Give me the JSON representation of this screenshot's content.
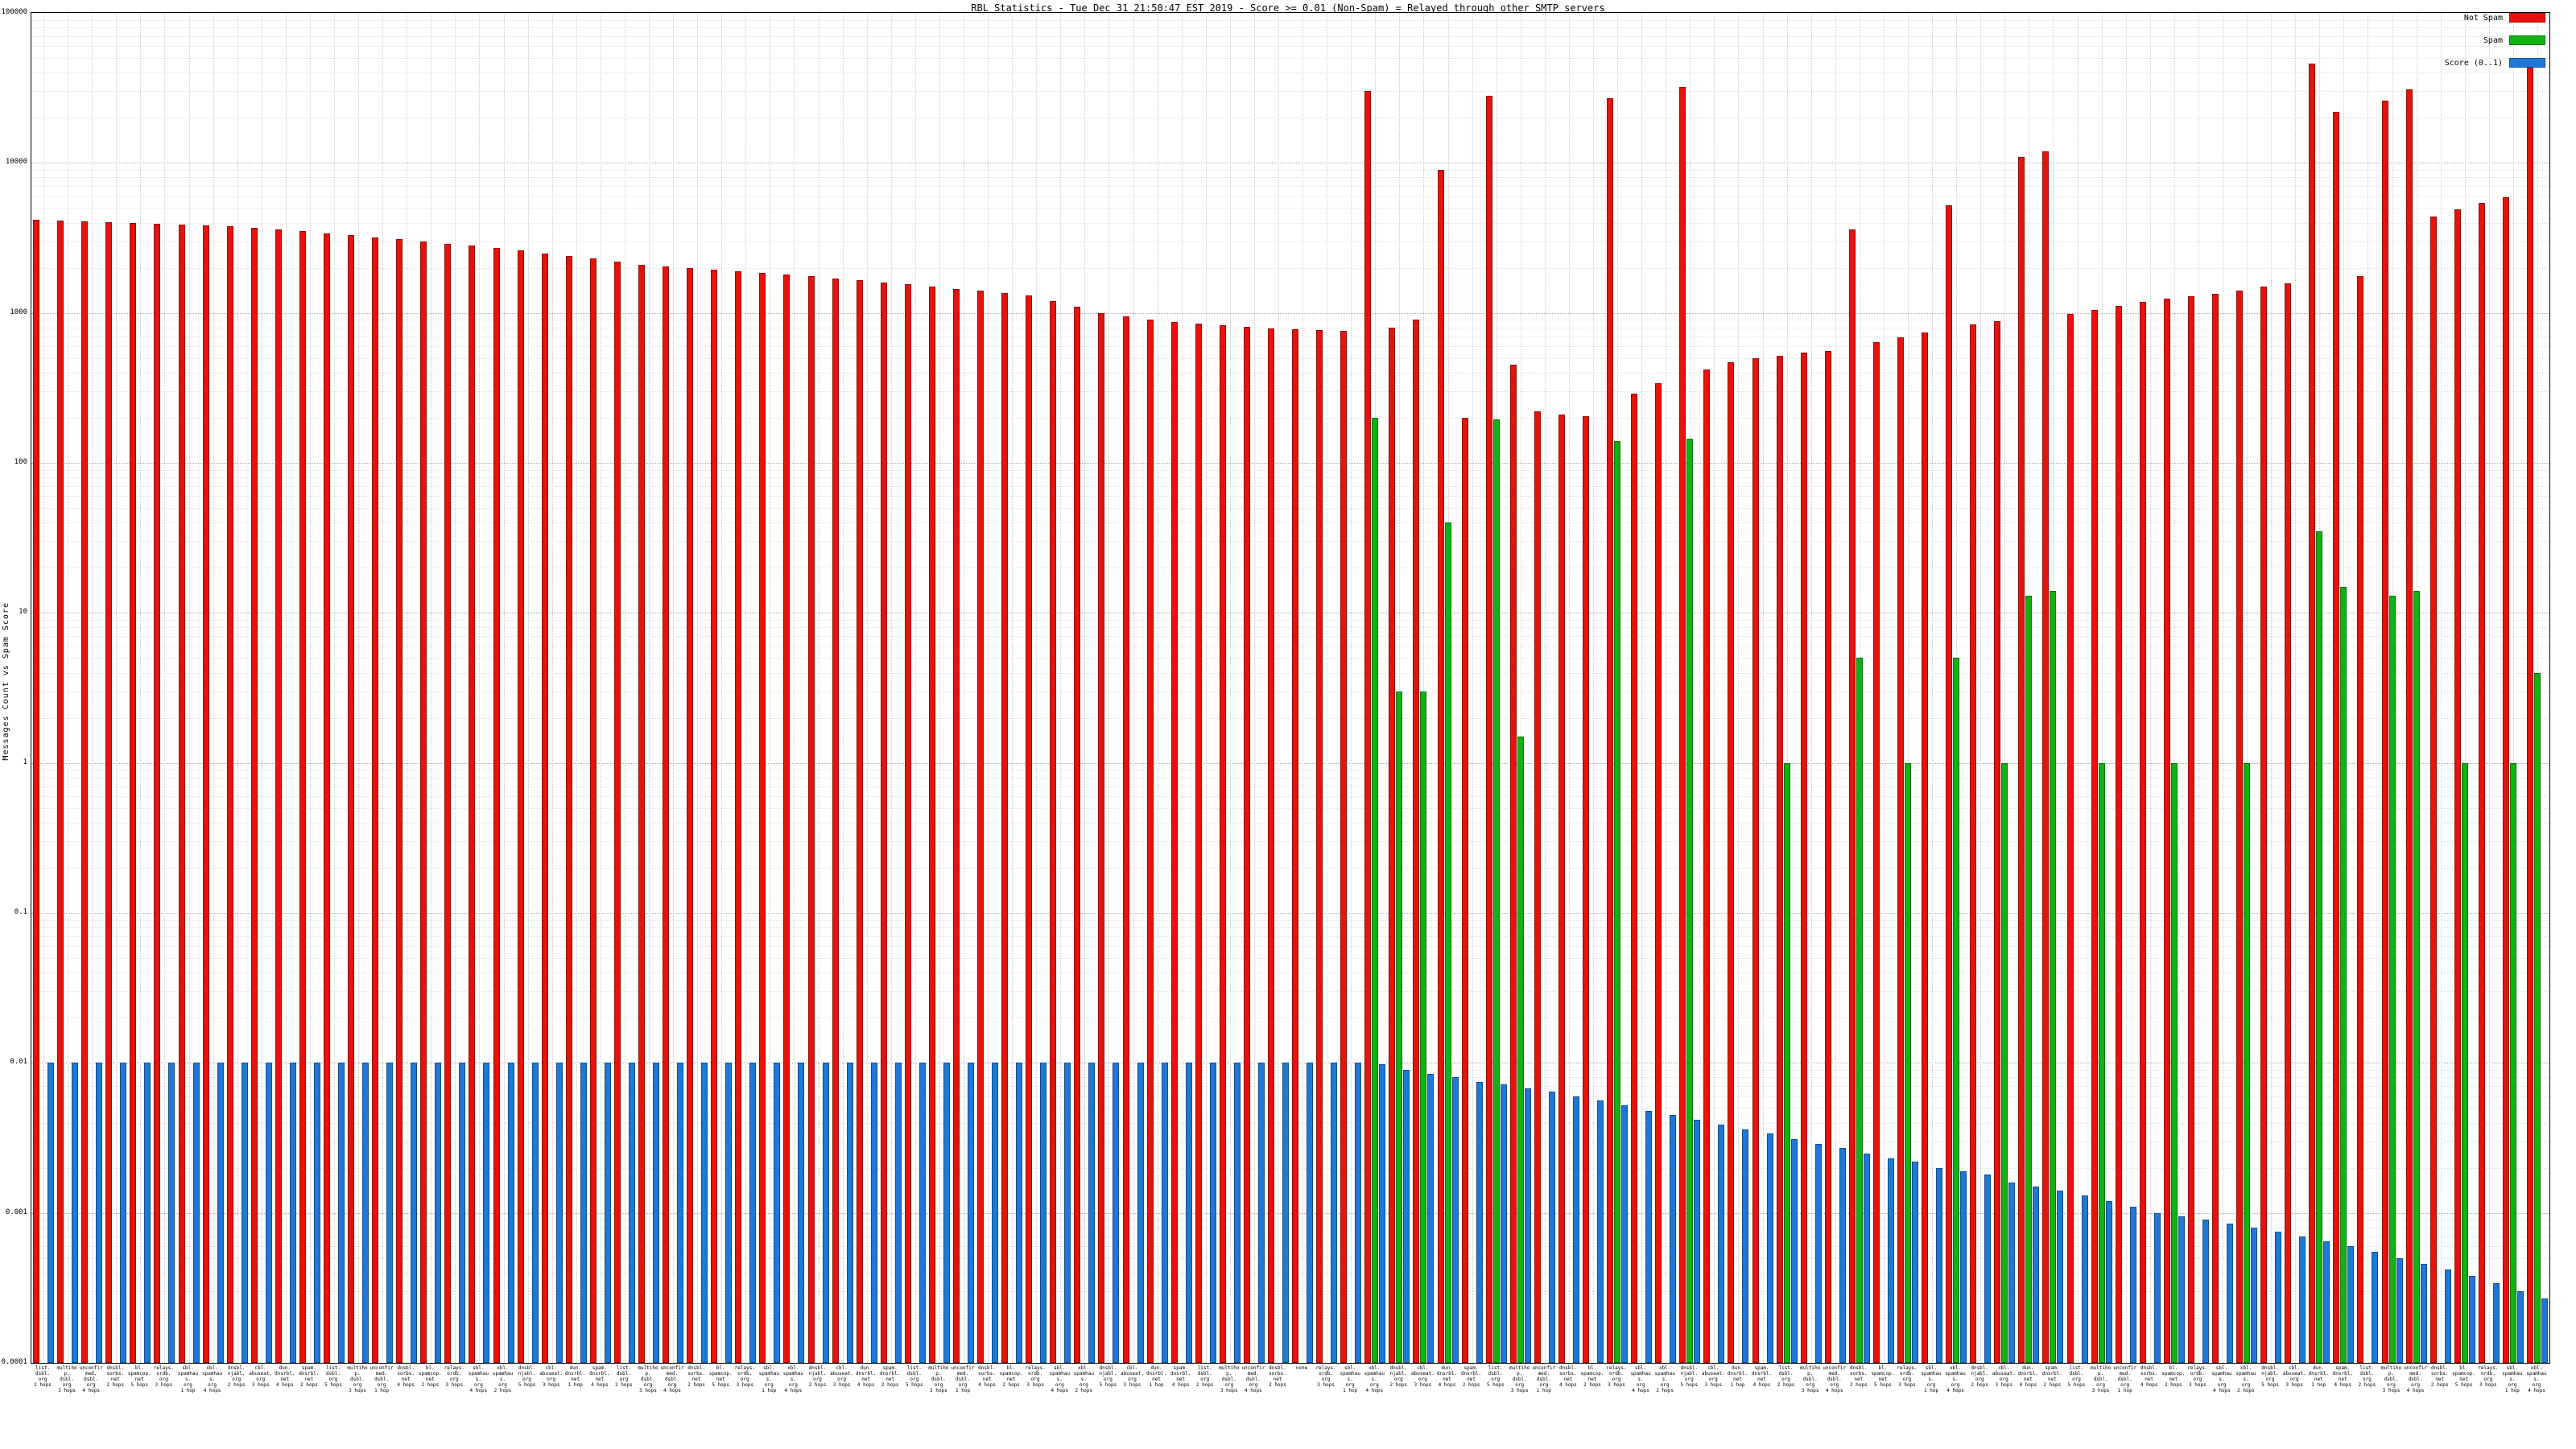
{
  "chart_data": {
    "type": "bar",
    "title": "RBL Statistics - Tue Dec 31 21:50:47 EST 2019 - Score >= 0.01 (Non-Spam) = Relayed through other SMTP servers",
    "ylabel": "Messages Count vs Spam Score",
    "xlabel": "",
    "y_scale": "log",
    "ylim": [
      0.0001,
      100000
    ],
    "y_ticks": [
      "100000",
      "10000",
      "1000",
      "100",
      "10",
      "1",
      "0.1",
      "0.01",
      "0.001",
      "0.0001"
    ],
    "grid": true,
    "legend_position": "top-right",
    "categories": [
      "list. dsbl. org 2~hops",
      "multihop. dsbl. org 3~hops",
      "unconfirmed. dsbl. org 4~hops",
      "dnsbl. sorbs. net 2~hops",
      "bl. spamcop. net 5~hops",
      "relays. ordb. org 3~hops",
      "sbl. spamhaus. org 1~hop",
      "xbl. spamhaus. org 4~hops",
      "dnsbl. njabl. org 2~hops",
      "cbl. abuseat. org 3~hops",
      "dun. dnsrbl. net 4~hops",
      "spam. dnsrbl. net 2~hops",
      "list. dsbl. org 5~hops",
      "multihop. dsbl. org 3~hops",
      "unconfirmed. dsbl. org 1~hop",
      "dnsbl. sorbs. net 4~hops",
      "bl. spamcop. net 2~hops",
      "relays. ordb. org 3~hops",
      "sbl. spamhaus. org 4~hops",
      "xbl. spamhaus. org 2~hops",
      "dnsbl. njabl. org 5~hops",
      "cbl. abuseat. org 3~hops",
      "dun. dnsrbl. net 1~hop",
      "spam. dnsrbl. net 4~hops",
      "list. dsbl. org 2~hops",
      "multihop. dsbl. org 3~hops",
      "unconfirmed. dsbl. org 4~hops",
      "dnsbl. sorbs. net 2~hops",
      "bl. spamcop. net 5~hops",
      "relays. ordb. org 3~hops",
      "sbl. spamhaus. org 1~hop",
      "xbl. spamhaus. org 4~hops",
      "dnsbl. njabl. org 2~hops",
      "cbl. abuseat. org 3~hops",
      "dun. dnsrbl. net 4~hops",
      "spam. dnsrbl. net 2~hops",
      "list. dsbl. org 5~hops",
      "multihop. dsbl. org 3~hops",
      "unconfirmed. dsbl. org 1~hop",
      "dnsbl. sorbs. net 4~hops",
      "bl. spamcop. net 2~hops",
      "relays. ordb. org 3~hops",
      "sbl. spamhaus. org 4~hops",
      "xbl. spamhaus. org 2~hops",
      "dnsbl. njabl. org 5~hops",
      "cbl. abuseat. org 3~hops",
      "dun. dnsrbl. net 1~hop",
      "spam. dnsrbl. net 4~hops",
      "list. dsbl. org 2~hops",
      "multihop. dsbl. org 3~hops",
      "unconfirmed. dsbl. org 4~hops",
      "dnsbl. sorbs. net 2~hops",
      "none",
      "relays. ordb. org 3~hops",
      "sbl. spamhaus. org 1~hop",
      "xbl. spamhaus. org 4~hops",
      "dnsbl. njabl. org 2~hops",
      "cbl. abuseat. org 3~hops",
      "dun. dnsrbl. net 4~hops",
      "spam. dnsrbl. net 2~hops",
      "list. dsbl. org 5~hops",
      "multihop. dsbl. org 3~hops",
      "unconfirmed. dsbl. org 1~hop",
      "dnsbl. sorbs. net 4~hops",
      "bl. spamcop. net 2~hops",
      "relays. ordb. org 3~hops",
      "sbl. spamhaus. org 4~hops",
      "xbl. spamhaus. org 2~hops",
      "dnsbl. njabl. org 5~hops",
      "cbl. abuseat. org 3~hops",
      "dun. dnsrbl. net 1~hop",
      "spam. dnsrbl. net 4~hops",
      "list. dsbl. org 2~hops",
      "multihop. dsbl. org 3~hops",
      "unconfirmed. dsbl. org 4~hops",
      "dnsbl. sorbs. net 2~hops",
      "bl. spamcop. net 5~hops",
      "relays. ordb. org 3~hops",
      "sbl. spamhaus. org 1~hop",
      "xbl. spamhaus. org 4~hops",
      "dnsbl. njabl. org 2~hops",
      "cbl. abuseat. org 3~hops",
      "dun. dnsrbl. net 4~hops",
      "spam. dnsrbl. net 2~hops",
      "list. dsbl. org 5~hops",
      "multihop. dsbl. org 3~hops",
      "unconfirmed. dsbl. org 1~hop",
      "dnsbl. sorbs. net 4~hops",
      "bl. spamcop. net 2~hops",
      "relays. ordb. org 3~hops",
      "sbl. spamhaus. org 4~hops",
      "xbl. spamhaus. org 2~hops",
      "dnsbl. njabl. org 5~hops",
      "cbl. abuseat. org 3~hops",
      "dun. dnsrbl. net 1~hop",
      "spam. dnsrbl. net 4~hops",
      "list. dsbl. org 2~hops",
      "multihop. dsbl. org 3~hops",
      "unconfirmed. dsbl. org 4~hops",
      "dnsbl. sorbs. net 2~hops",
      "bl. spamcop. net 5~hops",
      "relays. ordb. org 3~hops",
      "sbl. spamhaus. org 1~hop",
      "xbl. spamhaus. org 4~hops"
    ],
    "series": [
      {
        "name": "Not Spam",
        "color": "#e8120c",
        "values": [
          4200,
          4150,
          4100,
          4050,
          4000,
          3950,
          3900,
          3850,
          3800,
          3700,
          3600,
          3500,
          3400,
          3300,
          3200,
          3100,
          3000,
          2900,
          2800,
          2700,
          2600,
          2500,
          2400,
          2300,
          2200,
          2100,
          2050,
          2000,
          1950,
          1900,
          1850,
          1800,
          1750,
          1700,
          1650,
          1600,
          1550,
          1500,
          1450,
          1400,
          1350,
          1300,
          1200,
          1100,
          1000,
          950,
          900,
          870,
          850,
          830,
          810,
          790,
          780,
          770,
          760,
          30000,
          800,
          900,
          9000,
          200,
          28000,
          450,
          220,
          210,
          205,
          27000,
          290,
          340,
          32000,
          420,
          470,
          500,
          520,
          545,
          560,
          3600,
          640,
          690,
          740,
          5200,
          840,
          880,
          11000,
          12000,
          980,
          1050,
          1120,
          1180,
          1250,
          1290,
          1340,
          1400,
          1490,
          1580,
          46000,
          22000,
          1750,
          26000,
          31000,
          4400,
          4900,
          5400,
          5900,
          43000
        ]
      },
      {
        "name": "Spam",
        "color": "#12b212",
        "values": [
          0,
          0,
          0,
          0,
          0,
          0,
          0,
          0,
          0,
          0,
          0,
          0,
          0,
          0,
          0,
          0,
          0,
          0,
          0,
          0,
          0,
          0,
          0,
          0,
          0,
          0,
          0,
          0,
          0,
          0,
          0,
          0,
          0,
          0,
          0,
          0,
          0,
          0,
          0,
          0,
          0,
          0,
          0,
          0,
          0,
          0,
          0,
          0,
          0,
          0,
          0,
          0,
          0,
          0,
          0,
          200,
          3,
          3,
          40,
          0,
          195,
          1.5,
          0,
          0,
          0,
          140,
          0,
          0,
          145,
          0,
          0,
          0,
          1,
          0,
          0,
          5,
          0,
          1,
          0,
          5,
          0,
          1,
          13,
          14,
          0,
          1,
          0,
          0,
          1,
          0,
          0,
          1,
          0,
          0,
          35,
          15,
          0,
          13,
          14,
          0,
          1,
          0,
          1,
          4
        ]
      },
      {
        "name": "Score (0..1)",
        "color": "#1e78d7",
        "values": [
          0.01,
          0.01,
          0.01,
          0.01,
          0.01,
          0.01,
          0.01,
          0.01,
          0.01,
          0.01,
          0.01,
          0.01,
          0.01,
          0.01,
          0.01,
          0.01,
          0.01,
          0.01,
          0.01,
          0.01,
          0.01,
          0.01,
          0.01,
          0.01,
          0.01,
          0.01,
          0.01,
          0.01,
          0.01,
          0.01,
          0.01,
          0.01,
          0.01,
          0.01,
          0.01,
          0.01,
          0.01,
          0.01,
          0.01,
          0.01,
          0.01,
          0.01,
          0.01,
          0.01,
          0.01,
          0.01,
          0.01,
          0.01,
          0.01,
          0.01,
          0.01,
          0.01,
          0.01,
          0.01,
          0.01,
          0.0098,
          0.009,
          0.0085,
          0.008,
          0.0075,
          0.0072,
          0.0068,
          0.0064,
          0.006,
          0.0056,
          0.0052,
          0.0048,
          0.0045,
          0.0042,
          0.0039,
          0.0036,
          0.0034,
          0.0031,
          0.0029,
          0.0027,
          0.0025,
          0.0023,
          0.0022,
          0.002,
          0.0019,
          0.0018,
          0.0016,
          0.0015,
          0.0014,
          0.0013,
          0.0012,
          0.0011,
          0.001,
          0.00095,
          0.0009,
          0.00085,
          0.0008,
          0.00075,
          0.0007,
          0.00065,
          0.0006,
          0.00055,
          0.0005,
          0.00046,
          0.00042,
          0.00038,
          0.00034,
          0.0003,
          0.00027
        ]
      }
    ]
  }
}
